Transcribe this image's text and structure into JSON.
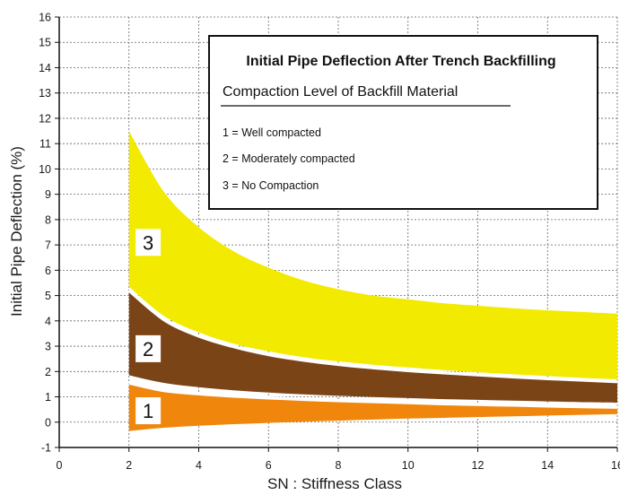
{
  "chart_data": {
    "type": "area",
    "xlabel": "SN : Stiffness Class",
    "ylabel": "Initial Pipe Deflection (%)",
    "xlim": [
      0,
      16
    ],
    "ylim": [
      -1,
      16
    ],
    "x_ticks": [
      0,
      2,
      4,
      6,
      8,
      10,
      12,
      14,
      16
    ],
    "y_ticks": [
      -1,
      0,
      1,
      2,
      3,
      4,
      5,
      6,
      7,
      8,
      9,
      10,
      11,
      12,
      13,
      14,
      15,
      16
    ],
    "grid": true,
    "legend": {
      "title": "Initial Pipe Deflection After Trench Backfilling",
      "subtitle": "Compaction Level of Backfill Material",
      "entries": [
        "1 = Well compacted",
        "2 = Moderately compacted",
        "3 = No Compaction"
      ],
      "placement": "top-right"
    },
    "x": [
      2,
      3,
      4,
      5,
      6,
      7,
      8,
      9,
      10,
      11,
      12,
      13,
      14,
      15,
      16
    ],
    "series": [
      {
        "name": "1",
        "color": "#f0860c",
        "upper": [
          1.55,
          1.25,
          1.12,
          1.03,
          0.96,
          0.9,
          0.85,
          0.81,
          0.77,
          0.73,
          0.7,
          0.67,
          0.64,
          0.61,
          0.59
        ],
        "lower": [
          -0.35,
          -0.22,
          -0.14,
          -0.08,
          -0.03,
          0.02,
          0.06,
          0.1,
          0.14,
          0.17,
          0.2,
          0.23,
          0.26,
          0.29,
          0.32
        ]
      },
      {
        "name": "2",
        "color": "#7b4416",
        "upper": [
          5.2,
          4.05,
          3.4,
          2.98,
          2.67,
          2.45,
          2.28,
          2.15,
          2.04,
          1.95,
          1.87,
          1.79,
          1.72,
          1.66,
          1.6
        ],
        "lower": [
          1.85,
          1.55,
          1.38,
          1.26,
          1.17,
          1.1,
          1.04,
          0.99,
          0.95,
          0.91,
          0.88,
          0.85,
          0.82,
          0.79,
          0.77
        ]
      },
      {
        "name": "3",
        "color": "#f2ea00",
        "upper": [
          11.5,
          9.1,
          7.7,
          6.75,
          6.1,
          5.6,
          5.25,
          5.0,
          4.85,
          4.7,
          4.6,
          4.5,
          4.42,
          4.35,
          4.28
        ],
        "lower": [
          5.35,
          4.2,
          3.55,
          3.1,
          2.8,
          2.57,
          2.4,
          2.27,
          2.16,
          2.06,
          1.97,
          1.89,
          1.82,
          1.75,
          1.69
        ]
      }
    ],
    "band_labels": [
      {
        "text": "1",
        "x": 2.55,
        "y": 0.45
      },
      {
        "text": "2",
        "x": 2.55,
        "y": 2.9
      },
      {
        "text": "3",
        "x": 2.55,
        "y": 7.1
      }
    ]
  }
}
